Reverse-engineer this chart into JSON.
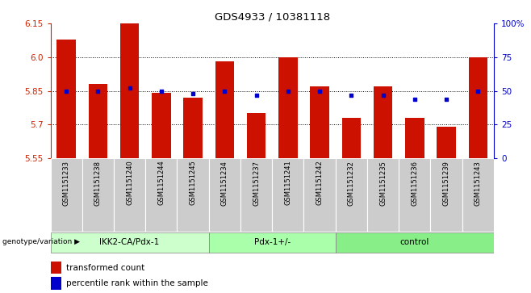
{
  "title": "GDS4933 / 10381118",
  "samples": [
    "GSM1151233",
    "GSM1151238",
    "GSM1151240",
    "GSM1151244",
    "GSM1151245",
    "GSM1151234",
    "GSM1151237",
    "GSM1151241",
    "GSM1151242",
    "GSM1151232",
    "GSM1151235",
    "GSM1151236",
    "GSM1151239",
    "GSM1151243"
  ],
  "transformed_counts": [
    6.08,
    5.88,
    6.15,
    5.84,
    5.82,
    5.98,
    5.75,
    6.0,
    5.87,
    5.73,
    5.87,
    5.73,
    5.69,
    6.0
  ],
  "percentile_ranks": [
    50,
    50,
    52,
    50,
    48,
    50,
    47,
    50,
    50,
    47,
    47,
    44,
    44,
    50
  ],
  "groups": [
    {
      "label": "IKK2-CA/Pdx-1",
      "start": 0,
      "end": 5,
      "color": "#ccffcc"
    },
    {
      "label": "Pdx-1+/-",
      "start": 5,
      "end": 9,
      "color": "#aaffaa"
    },
    {
      "label": "control",
      "start": 9,
      "end": 14,
      "color": "#88ee88"
    }
  ],
  "ylim_left": [
    5.55,
    6.15
  ],
  "ylim_right": [
    0,
    100
  ],
  "yticks_left": [
    5.55,
    5.7,
    5.85,
    6.0,
    6.15
  ],
  "yticks_right": [
    0,
    25,
    50,
    75,
    100
  ],
  "bar_color": "#cc1100",
  "dot_color": "#0000cc",
  "bar_bottom": 5.55,
  "right_axis_color": "#0000cc",
  "left_axis_color": "#cc2200",
  "legend_red_label": "transformed count",
  "legend_blue_label": "percentile rank within the sample",
  "genotype_label": "genotype/variation",
  "sample_bg_color": "#cccccc",
  "group_colors": [
    "#ccffcc",
    "#aaffaa",
    "#88ee88"
  ],
  "grid_yticks": [
    5.7,
    5.85,
    6.0
  ]
}
